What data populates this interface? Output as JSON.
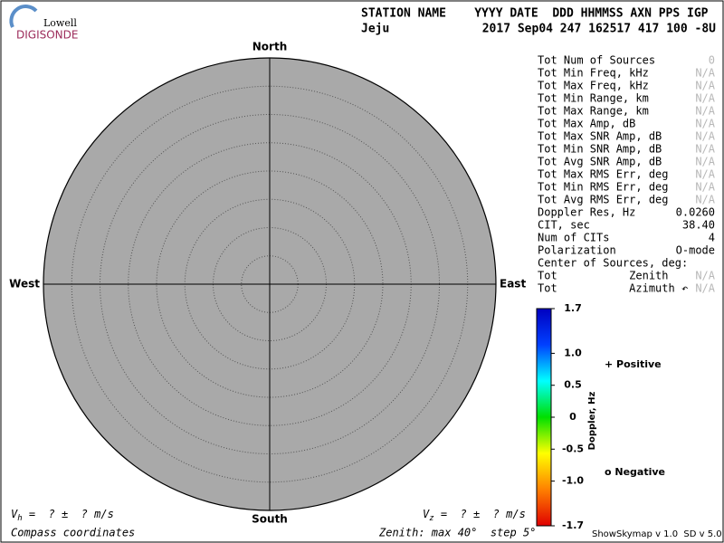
{
  "header": {
    "logo_top": "Lowell",
    "logo_bottom": "DIGISONDE",
    "columns": "STATION NAME    YYYY DATE  DDD HHMMSS AXN PPS IGP",
    "station": "Jeju",
    "values": "2017 Sep04 247 162517 417 100 -8U"
  },
  "stats": [
    {
      "label": "Tot Num of Sources",
      "value": "0",
      "muted": true
    },
    {
      "label": "Tot Min Freq, kHz",
      "value": "N/A",
      "muted": true
    },
    {
      "label": "Tot Max Freq, kHz",
      "value": "N/A",
      "muted": true
    },
    {
      "label": "Tot Min Range, km",
      "value": "N/A",
      "muted": true
    },
    {
      "label": "Tot Max Range, km",
      "value": "N/A",
      "muted": true
    },
    {
      "label": "Tot Max Amp, dB",
      "value": "N/A",
      "muted": true
    },
    {
      "label": "Tot Max SNR Amp, dB",
      "value": "N/A",
      "muted": true
    },
    {
      "label": "Tot Min SNR Amp, dB",
      "value": "N/A",
      "muted": true
    },
    {
      "label": "Tot Avg SNR Amp, dB",
      "value": "N/A",
      "muted": true
    },
    {
      "label": "Tot Max RMS Err, deg",
      "value": "N/A",
      "muted": true
    },
    {
      "label": "Tot Min RMS Err, deg",
      "value": "N/A",
      "muted": true
    },
    {
      "label": "Tot Avg RMS Err, deg",
      "value": "N/A",
      "muted": true
    },
    {
      "label": "Doppler Res, Hz",
      "value": "0.0260",
      "muted": false
    },
    {
      "label": "CIT, sec",
      "value": "38.40",
      "muted": false
    },
    {
      "label": "Num of CITs",
      "value": "4",
      "muted": false
    },
    {
      "label": "Polarization",
      "value": "O-mode",
      "muted": false
    },
    {
      "label": "Center of Sources, deg:",
      "value": "",
      "muted": false
    },
    {
      "label": "Tot           Zenith",
      "value": "N/A",
      "muted": true
    },
    {
      "label": "Tot           Azimuth ↶",
      "value": "N/A",
      "muted": true
    }
  ],
  "chart_data": {
    "type": "skymap",
    "directions": {
      "north": "North",
      "south": "South",
      "east": "East",
      "west": "West"
    },
    "rlim": [
      0,
      40
    ],
    "rticks": [
      5,
      10,
      15,
      20,
      25,
      30,
      35,
      40
    ],
    "disk_color": "#a9a9a9",
    "colorbar": {
      "label": "Doppler, Hz",
      "lim": [
        -1.7,
        1.7
      ],
      "ticks": [
        1.7,
        {
          "value": 1,
          "label": "1.0"
        },
        0.5,
        0,
        -0.5,
        {
          "value": -1,
          "label": "-1.0"
        },
        -1.7
      ],
      "colors": [
        "#e00000",
        "#ff8000",
        "#ffff00",
        "#00e000",
        "#00ffff",
        "#0040ff",
        "#0000c0"
      ]
    },
    "legend": [
      {
        "name": "+ Positive",
        "color": "#0000c0"
      },
      {
        "name": "o Negative",
        "color": "#e00000"
      }
    ]
  },
  "footer": {
    "vh_symbol": "V",
    "vh_sub": "h",
    "vh_text": " =  ? ±  ? m/s",
    "vz_symbol": "V",
    "vz_sub": "z",
    "vz_text": " =  ? ±  ? m/s",
    "coords": "Compass coordinates",
    "zenith": "Zenith: max 40°  step 5°",
    "version": "ShowSkymap v 1.0  SD v 5.0"
  }
}
